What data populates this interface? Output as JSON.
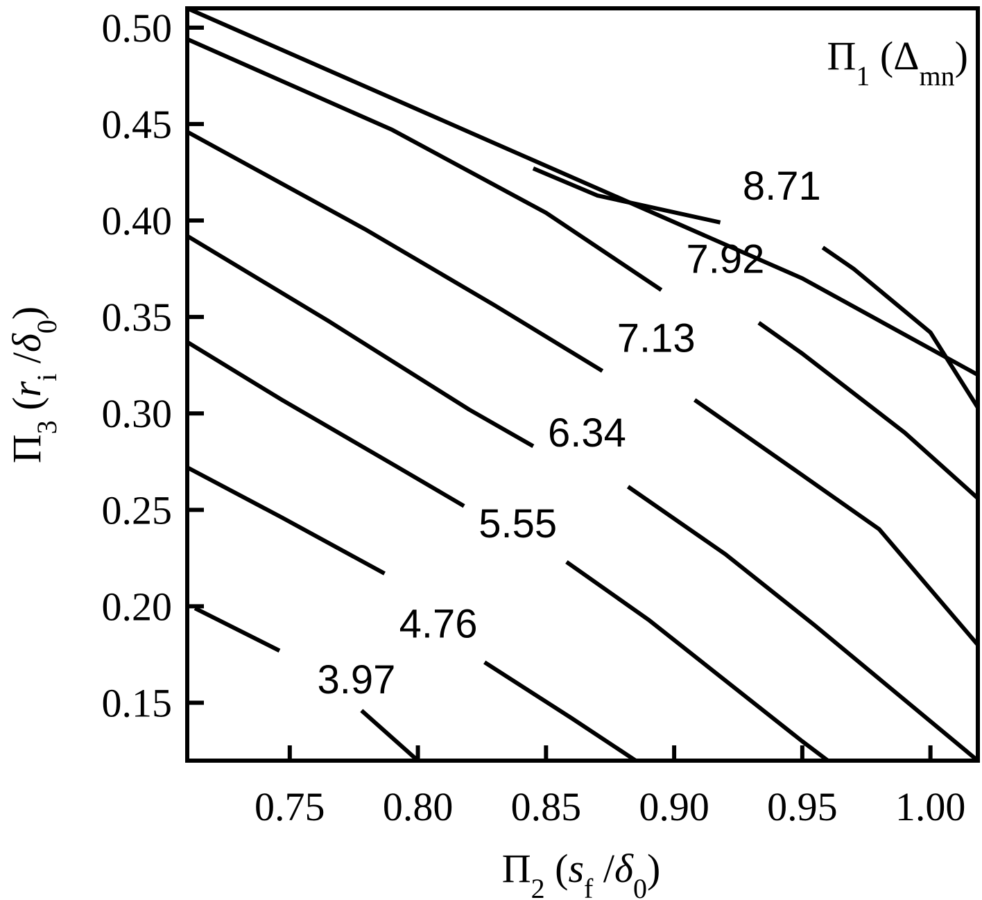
{
  "chart_data": {
    "type": "contour",
    "title": "Π1 (Δmn)",
    "title_parts": {
      "main": "Π",
      "sub1": "1",
      "paren_open": " (Δ",
      "sub2": "mn",
      "paren_close": ")"
    },
    "xlabel_parts": {
      "main": "Π",
      "sub1": "2",
      "open": " (",
      "var": "s",
      "var_sub": "f",
      "slash": " /",
      "delta": "δ",
      "delta_sub": "0",
      "close": ")"
    },
    "ylabel_parts": {
      "main": "Π",
      "sub1": "3",
      "open": " (",
      "var": "r",
      "var_sub": "i",
      "slash": " /",
      "delta": "δ",
      "delta_sub": "0",
      "close": ")"
    },
    "xlim": [
      0.71,
      1.0185
    ],
    "ylim": [
      0.12,
      0.51
    ],
    "x_ticks": [
      {
        "value": 0.75,
        "label": "0.75"
      },
      {
        "value": 0.8,
        "label": "0.80"
      },
      {
        "value": 0.85,
        "label": "0.85"
      },
      {
        "value": 0.9,
        "label": "0.90"
      },
      {
        "value": 0.95,
        "label": "0.95"
      },
      {
        "value": 1.0,
        "label": "1.00"
      }
    ],
    "y_ticks": [
      {
        "value": 0.15,
        "label": "0.15"
      },
      {
        "value": 0.2,
        "label": "0.20"
      },
      {
        "value": 0.25,
        "label": "0.25"
      },
      {
        "value": 0.3,
        "label": "0.30"
      },
      {
        "value": 0.35,
        "label": "0.35"
      },
      {
        "value": 0.4,
        "label": "0.40"
      },
      {
        "value": 0.45,
        "label": "0.45"
      },
      {
        "value": 0.5,
        "label": "0.50"
      }
    ],
    "boundary": [
      [
        0.71,
        0.51
      ],
      [
        0.83,
        0.44
      ],
      [
        0.95,
        0.37
      ],
      [
        1.0185,
        0.32
      ]
    ],
    "contours": [
      {
        "label": "3.97",
        "label_pos": [
          0.776,
          0.162
        ],
        "segments": [
          [
            [
              0.713,
              0.199
            ],
            [
              0.746,
              0.177
            ]
          ],
          [
            [
              0.778,
              0.146
            ],
            [
              0.8,
              0.12
            ]
          ]
        ]
      },
      {
        "label": "4.76",
        "label_pos": [
          0.808,
          0.191
        ],
        "segments": [
          [
            [
              0.71,
              0.272
            ],
            [
              0.747,
              0.246
            ],
            [
              0.787,
              0.217
            ]
          ],
          [
            [
              0.826,
              0.171
            ],
            [
              0.86,
              0.142
            ],
            [
              0.885,
              0.12
            ]
          ]
        ]
      },
      {
        "label": "5.55",
        "label_pos": [
          0.839,
          0.243
        ],
        "segments": [
          [
            [
              0.71,
              0.337
            ],
            [
              0.747,
              0.307
            ],
            [
              0.791,
              0.273
            ],
            [
              0.818,
              0.252
            ]
          ],
          [
            [
              0.858,
              0.223
            ],
            [
              0.89,
              0.193
            ],
            [
              0.95,
              0.13
            ],
            [
              0.96,
              0.12
            ]
          ]
        ]
      },
      {
        "label": "6.34",
        "label_pos": [
          0.866,
          0.29
        ],
        "segments": [
          [
            [
              0.71,
              0.392
            ],
            [
              0.765,
              0.348
            ],
            [
              0.82,
              0.302
            ],
            [
              0.845,
              0.283
            ]
          ],
          [
            [
              0.882,
              0.262
            ],
            [
              0.92,
              0.227
            ],
            [
              0.955,
              0.19
            ],
            [
              1.0185,
              0.12
            ]
          ]
        ]
      },
      {
        "label": "7.13",
        "label_pos": [
          0.893,
          0.339
        ],
        "segments": [
          [
            [
              0.71,
              0.446
            ],
            [
              0.78,
              0.395
            ],
            [
              0.83,
              0.356
            ],
            [
              0.872,
              0.322
            ]
          ],
          [
            [
              0.908,
              0.307
            ],
            [
              0.95,
              0.268
            ],
            [
              0.98,
              0.24
            ],
            [
              1.0185,
              0.18
            ]
          ]
        ]
      },
      {
        "label": "7.92",
        "label_pos": [
          0.92,
          0.38
        ],
        "segments": [
          [
            [
              0.71,
              0.494
            ],
            [
              0.79,
              0.447
            ],
            [
              0.85,
              0.404
            ],
            [
              0.895,
              0.364
            ]
          ],
          [
            [
              0.933,
              0.347
            ],
            [
              0.95,
              0.331
            ],
            [
              0.99,
              0.29
            ],
            [
              1.0185,
              0.256
            ]
          ]
        ]
      },
      {
        "label": "8.71",
        "label_pos": [
          0.942,
          0.418
        ],
        "segments": [
          [
            [
              0.845,
              0.427
            ],
            [
              0.87,
              0.413
            ],
            [
              0.918,
              0.399
            ]
          ],
          [
            [
              0.958,
              0.386
            ],
            [
              0.97,
              0.375
            ],
            [
              1.0,
              0.342
            ],
            [
              1.0185,
              0.303
            ]
          ]
        ]
      }
    ]
  }
}
